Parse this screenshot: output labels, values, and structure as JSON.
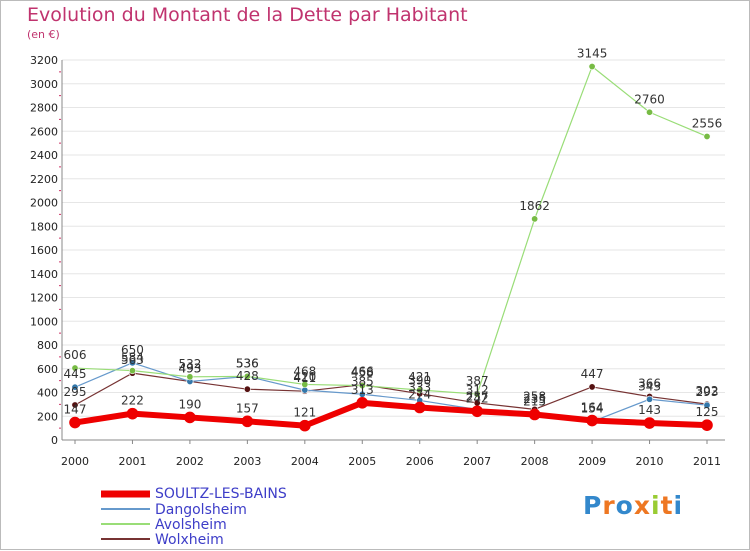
{
  "title": "Evolution du Montant de la Dette par Habitant",
  "subtitle": "(en €)",
  "logo_text": "Proxiti",
  "chart_data": {
    "type": "line",
    "title": "Evolution du Montant de la Dette par Habitant",
    "ylabel": "(en €)",
    "xlabel": "",
    "ylim": [
      0,
      3200
    ],
    "yticks": [
      "0",
      "200",
      "400",
      "600",
      "800",
      "1000",
      "1200",
      "1400",
      "1600",
      "1800",
      "2000",
      "2200",
      "2400",
      "2600",
      "2800",
      "3000",
      "3200"
    ],
    "ytick_values": [
      0,
      200,
      400,
      600,
      800,
      1000,
      1200,
      1400,
      1600,
      1800,
      2000,
      2200,
      2400,
      2600,
      2800,
      3000,
      3200
    ],
    "categories": [
      "2000",
      "2001",
      "2002",
      "2003",
      "2004",
      "2005",
      "2006",
      "2007",
      "2008",
      "2009",
      "2010",
      "2011"
    ],
    "grid": "horizontal",
    "series": [
      {
        "name": "Dangolsheim",
        "color": "#6699cc",
        "marker": "#3377aa",
        "width": 1.2,
        "values": [
          445,
          650,
          493,
          536,
          420,
          385,
          333,
          257,
          235,
          154,
          343,
          293
        ],
        "labels": [
          "445",
          "650",
          "493",
          "536",
          "420",
          "385",
          "333",
          "257",
          "235",
          "154",
          "343",
          "293"
        ]
      },
      {
        "name": "Avolsheim",
        "color": "#99dd77",
        "marker": "#77bb44",
        "width": 1.2,
        "values": [
          606,
          584,
          532,
          536,
          468,
          458,
          421,
          387,
          1862,
          3145,
          2760,
          2556
        ],
        "labels": [
          "606",
          "584",
          "532",
          "536",
          "468",
          "458",
          "421",
          "387",
          "1862",
          "3145",
          "2760",
          "2556"
        ]
      },
      {
        "name": "Wolxheim",
        "color": "#773333",
        "marker": "#551111",
        "width": 1.2,
        "values": [
          295,
          563,
          493,
          428,
          411,
          466,
          390,
          312,
          258,
          447,
          366,
          302
        ],
        "labels": [
          "295",
          "563",
          "493",
          "428",
          "411",
          "466",
          "390",
          "312",
          "258",
          "447",
          "366",
          "302"
        ]
      },
      {
        "name": "SOULTZ-LES-BAINS",
        "color": "#ee0000",
        "marker": "#ee0000",
        "width": 6,
        "values": [
          147,
          222,
          190,
          157,
          121,
          313,
          274,
          242,
          215,
          164,
          143,
          125
        ],
        "labels": [
          "147",
          "222",
          "190",
          "157",
          "121",
          "313",
          "274",
          "242",
          "215",
          "164",
          "143",
          "125"
        ]
      }
    ],
    "legend": {
      "position": "bottom-left",
      "order": [
        "SOULTZ-LES-BAINS",
        "Dangolsheim",
        "Avolsheim",
        "Wolxheim"
      ]
    }
  }
}
